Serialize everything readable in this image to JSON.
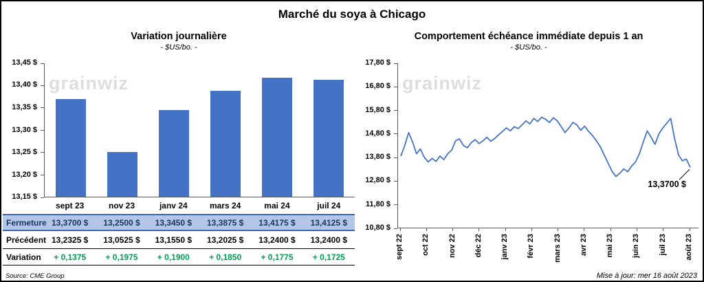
{
  "page": {
    "title": "Marché du soya à Chicago",
    "watermark": "grainwiz",
    "source_note": "Source: CME Group",
    "update_note": "Mise à jour: mer 16 août 2023"
  },
  "colors": {
    "bar_fill": "#4472C4",
    "line_stroke": "#4472C4",
    "axis": "#595959",
    "fermeture_bg": "#B4C6E7",
    "fermeture_border": "#3A66AE",
    "fermeture_text": "#17365D",
    "variation_green": "#00A050",
    "watermark": "#D8D8D8"
  },
  "chart_data": [
    {
      "type": "bar",
      "title": "Variation  journalière",
      "subtitle": "- $US/bo. -",
      "categories": [
        "sept 23",
        "nov 23",
        "janv 24",
        "mars 24",
        "mai 24",
        "juil 24"
      ],
      "values": [
        13.37,
        13.25,
        13.345,
        13.3875,
        13.4175,
        13.4125
      ],
      "ylim": [
        13.15,
        13.45
      ],
      "y_ticks": [
        "13,45 $",
        "13,40 $",
        "13,35 $",
        "13,30 $",
        "13,25 $",
        "13,20 $",
        "13,15 $"
      ],
      "grid": false,
      "legend": false
    },
    {
      "type": "line",
      "title": "Comportement  échéance  immédiate  depuis  1 an",
      "subtitle": "- $US/bo. -",
      "x_labels": [
        "sept 22",
        "oct 22",
        "nov 22",
        "déc 22",
        "janv 23",
        "févr 23",
        "mars 23",
        "avr 23",
        "mai 23",
        "juin 23",
        "juil 23",
        "août 23"
      ],
      "ylim": [
        10.8,
        17.8
      ],
      "y_ticks": [
        "17,80 $",
        "16,80 $",
        "15,80 $",
        "14,80 $",
        "13,80 $",
        "12,80 $",
        "11,80 $",
        "10,80 $"
      ],
      "values": [
        13.85,
        14.3,
        14.85,
        14.45,
        13.95,
        14.15,
        13.8,
        13.6,
        13.75,
        13.62,
        13.85,
        13.7,
        13.95,
        14.1,
        14.5,
        14.58,
        14.3,
        14.2,
        14.42,
        14.55,
        14.38,
        14.5,
        14.65,
        14.48,
        14.6,
        14.75,
        14.9,
        15.05,
        14.92,
        15.1,
        15.02,
        15.18,
        15.35,
        15.22,
        15.45,
        15.32,
        15.5,
        15.42,
        15.28,
        15.48,
        15.35,
        15.1,
        14.85,
        15.05,
        15.28,
        15.18,
        14.95,
        15.12,
        14.9,
        14.72,
        14.5,
        14.25,
        13.9,
        13.55,
        13.2,
        12.98,
        13.12,
        13.3,
        13.18,
        13.42,
        13.6,
        13.95,
        14.45,
        14.92,
        14.65,
        14.35,
        14.8,
        15.05,
        15.25,
        15.45,
        14.6,
        13.9,
        13.65,
        13.72,
        13.37
      ],
      "annotation": "13,3700 $",
      "grid": false,
      "legend": false
    }
  ],
  "table": {
    "rows": [
      {
        "label": "Fermeture",
        "values": [
          "13,3700  $",
          "13,2500  $",
          "13,3450  $",
          "13,3875  $",
          "13,4175  $",
          "13,4125  $"
        ]
      },
      {
        "label": "Précédent",
        "values": [
          "13,2325  $",
          "13,0525  $",
          "13,1550  $",
          "13,2025  $",
          "13,2400  $",
          "13,2400  $"
        ]
      },
      {
        "label": "Variation",
        "values": [
          "+ 0,1375",
          "+ 0,1975",
          "+ 0,1900",
          "+ 0,1850",
          "+ 0,1775",
          "+ 0,1725"
        ]
      }
    ]
  }
}
